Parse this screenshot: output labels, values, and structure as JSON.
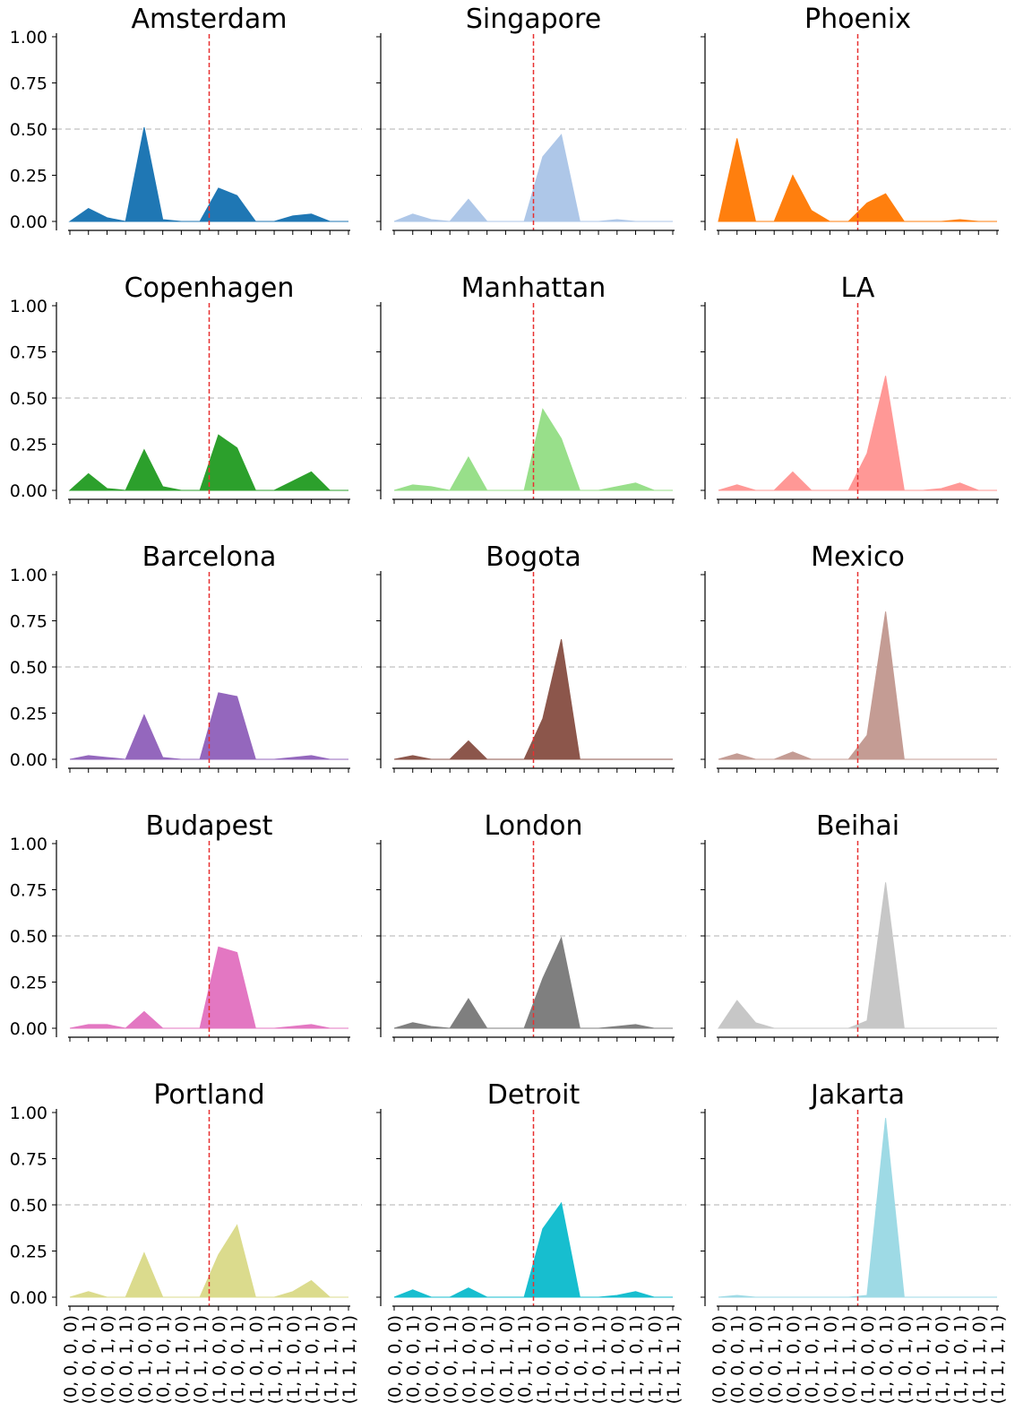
{
  "colors": {
    "vline": "#e83030",
    "hline": "#cccccc",
    "axis": "#000000"
  },
  "chart_data": {
    "type": "area",
    "layout": "5x3 grid of small multiples",
    "categories": [
      "(0, 0, 0, 0)",
      "(0, 0, 0, 1)",
      "(0, 0, 1, 0)",
      "(0, 0, 1, 1)",
      "(0, 1, 0, 0)",
      "(0, 1, 0, 1)",
      "(0, 1, 1, 0)",
      "(0, 1, 1, 1)",
      "(1, 0, 0, 0)",
      "(1, 0, 0, 1)",
      "(1, 0, 1, 0)",
      "(1, 0, 1, 1)",
      "(1, 1, 0, 0)",
      "(1, 1, 0, 1)",
      "(1, 1, 1, 0)",
      "(1, 1, 1, 1)"
    ],
    "ylim": [
      0,
      1
    ],
    "yticks": [
      "0.00",
      "0.25",
      "0.50",
      "0.75",
      "1.00"
    ],
    "hline": 0.5,
    "vline_index": 7.5,
    "grid": false,
    "panels": [
      {
        "title": "Amsterdam",
        "color": "#1f77b4",
        "values": [
          0.0,
          0.07,
          0.02,
          0.0,
          0.51,
          0.01,
          0.0,
          0.0,
          0.18,
          0.14,
          0.0,
          0.0,
          0.03,
          0.04,
          0.0,
          0.0
        ]
      },
      {
        "title": "Singapore",
        "color": "#aec7e8",
        "values": [
          0.0,
          0.04,
          0.01,
          0.0,
          0.12,
          0.0,
          0.0,
          0.0,
          0.35,
          0.47,
          0.0,
          0.0,
          0.01,
          0.0,
          0.0,
          0.0
        ]
      },
      {
        "title": "Phoenix",
        "color": "#ff7f0e",
        "values": [
          0.0,
          0.45,
          0.0,
          0.0,
          0.25,
          0.06,
          0.0,
          0.0,
          0.1,
          0.15,
          0.0,
          0.0,
          0.0,
          0.01,
          0.0,
          0.0
        ]
      },
      {
        "title": "Copenhagen",
        "color": "#2ca02c",
        "values": [
          0.0,
          0.09,
          0.01,
          0.0,
          0.22,
          0.02,
          0.0,
          0.0,
          0.3,
          0.23,
          0.0,
          0.0,
          0.05,
          0.1,
          0.0,
          0.0
        ]
      },
      {
        "title": "Manhattan",
        "color": "#98df8a",
        "values": [
          0.0,
          0.03,
          0.02,
          0.0,
          0.18,
          0.0,
          0.0,
          0.0,
          0.44,
          0.28,
          0.0,
          0.0,
          0.02,
          0.04,
          0.0,
          0.0
        ]
      },
      {
        "title": "LA",
        "color": "#ff9896",
        "values": [
          0.0,
          0.03,
          0.0,
          0.0,
          0.1,
          0.0,
          0.0,
          0.0,
          0.2,
          0.62,
          0.0,
          0.0,
          0.01,
          0.04,
          0.0,
          0.0
        ]
      },
      {
        "title": "Barcelona",
        "color": "#9467bd",
        "values": [
          0.0,
          0.02,
          0.01,
          0.0,
          0.24,
          0.01,
          0.0,
          0.0,
          0.36,
          0.34,
          0.0,
          0.0,
          0.01,
          0.02,
          0.0,
          0.0
        ]
      },
      {
        "title": "Bogota",
        "color": "#8c564b",
        "values": [
          0.0,
          0.02,
          0.0,
          0.0,
          0.1,
          0.0,
          0.0,
          0.0,
          0.22,
          0.65,
          0.0,
          0.0,
          0.0,
          0.0,
          0.0,
          0.0
        ]
      },
      {
        "title": "Mexico",
        "color": "#c49c94",
        "values": [
          0.0,
          0.03,
          0.0,
          0.0,
          0.04,
          0.0,
          0.0,
          0.0,
          0.13,
          0.8,
          0.0,
          0.0,
          0.0,
          0.0,
          0.0,
          0.0
        ]
      },
      {
        "title": "Budapest",
        "color": "#e377c2",
        "values": [
          0.0,
          0.02,
          0.02,
          0.0,
          0.09,
          0.0,
          0.0,
          0.0,
          0.44,
          0.41,
          0.0,
          0.0,
          0.01,
          0.02,
          0.0,
          0.0
        ]
      },
      {
        "title": "London",
        "color": "#7f7f7f",
        "values": [
          0.0,
          0.03,
          0.01,
          0.0,
          0.16,
          0.0,
          0.0,
          0.0,
          0.27,
          0.49,
          0.0,
          0.0,
          0.01,
          0.02,
          0.0,
          0.0
        ]
      },
      {
        "title": "Beihai",
        "color": "#c7c7c7",
        "values": [
          0.0,
          0.15,
          0.03,
          0.0,
          0.0,
          0.0,
          0.0,
          0.0,
          0.04,
          0.79,
          0.0,
          0.0,
          0.0,
          0.0,
          0.0,
          0.0
        ]
      },
      {
        "title": "Portland",
        "color": "#dbdb8d",
        "values": [
          0.0,
          0.03,
          0.0,
          0.0,
          0.24,
          0.0,
          0.0,
          0.0,
          0.23,
          0.39,
          0.0,
          0.0,
          0.03,
          0.09,
          0.0,
          0.0
        ]
      },
      {
        "title": "Detroit",
        "color": "#17becf",
        "values": [
          0.0,
          0.04,
          0.0,
          0.0,
          0.05,
          0.0,
          0.0,
          0.0,
          0.37,
          0.51,
          0.0,
          0.0,
          0.01,
          0.03,
          0.0,
          0.0
        ]
      },
      {
        "title": "Jakarta",
        "color": "#9edae5",
        "values": [
          0.0,
          0.01,
          0.0,
          0.0,
          0.0,
          0.0,
          0.0,
          0.0,
          0.01,
          0.97,
          0.0,
          0.0,
          0.0,
          0.0,
          0.0,
          0.0
        ]
      }
    ]
  }
}
